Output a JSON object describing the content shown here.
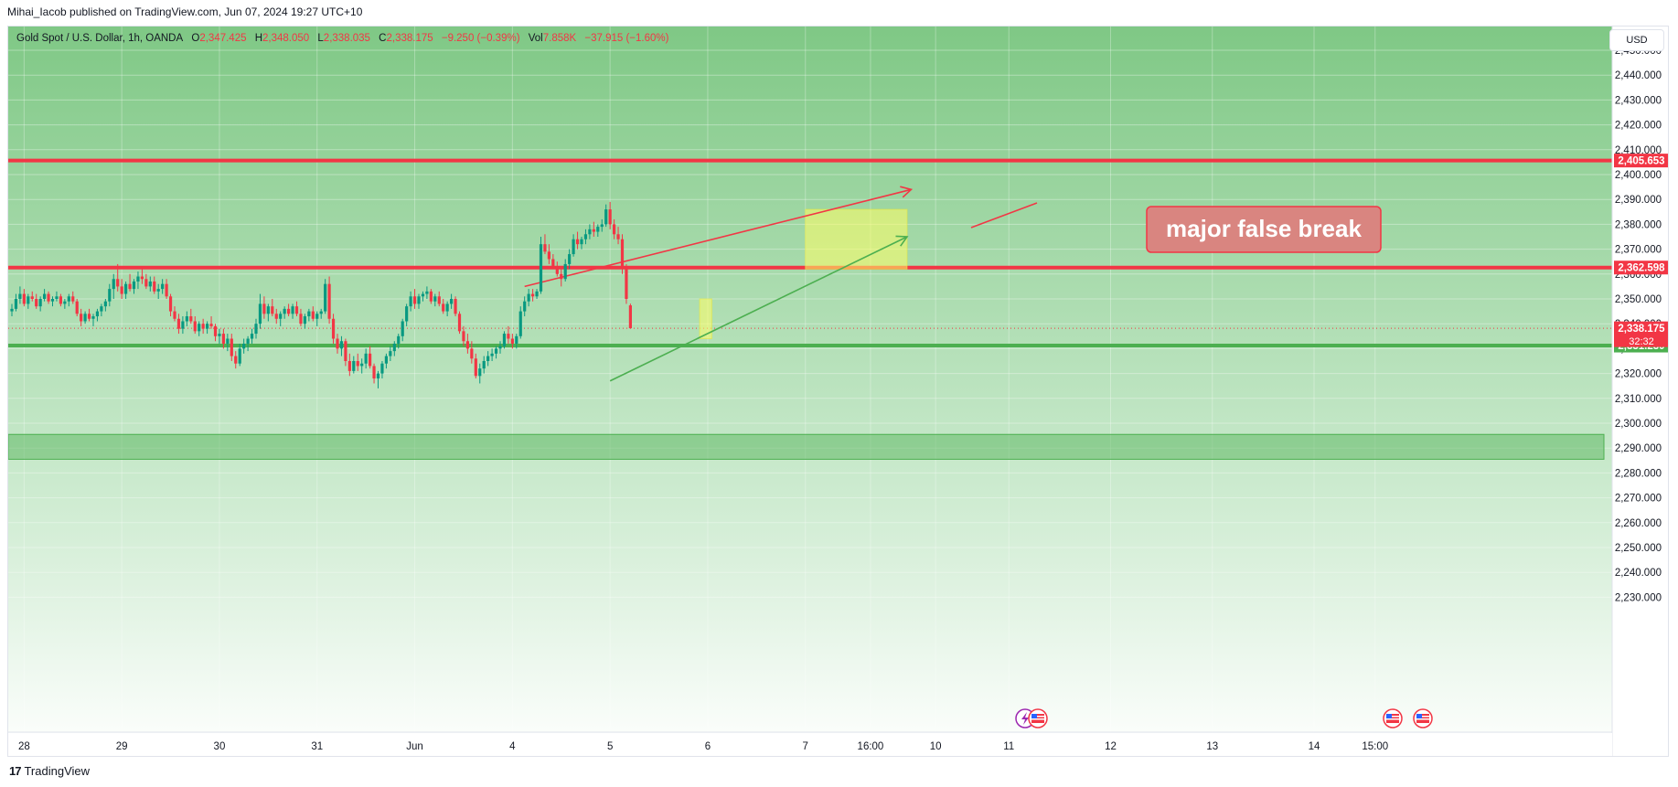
{
  "header": {
    "publish_line": "Mihai_Iacob published on TradingView.com, Jun 07, 2024 19:27 UTC+10"
  },
  "legend": {
    "symbol": "Gold Spot / U.S. Dollar, 1h, OANDA",
    "o_label": "O",
    "o_value": "2,347.425",
    "h_label": "H",
    "h_value": "2,348.050",
    "l_label": "L",
    "l_value": "2,338.035",
    "c_label": "C",
    "c_value": "2,338.175",
    "change": "−9.250 (−0.39%)",
    "vol_label": "Vol",
    "vol_value": "7.858K",
    "vol_change": "−37.915 (−1.60%)"
  },
  "currency": "USD",
  "footer": {
    "brand": "TradingView",
    "logo": "17"
  },
  "colors": {
    "up": "#089981",
    "down": "#f23645",
    "support": "#4caf50",
    "bg_top": "#7fc885",
    "bg_bottom": "#ffffff",
    "zone": "#ffff66"
  },
  "chart_data": {
    "type": "candlestick",
    "symbol": "XAUUSD",
    "interval": "1h",
    "y_axis": {
      "min": 2225,
      "max": 2455,
      "ticks": [
        2230,
        2240,
        2250,
        2260,
        2270,
        2280,
        2290,
        2300,
        2310,
        2320,
        2330,
        2340,
        2350,
        2360,
        2370,
        2380,
        2390,
        2400,
        2410,
        2420,
        2430,
        2440,
        2450
      ]
    },
    "x_ticks": [
      {
        "label": "28",
        "bar": 3
      },
      {
        "label": "29",
        "bar": 27
      },
      {
        "label": "30",
        "bar": 51
      },
      {
        "label": "31",
        "bar": 75
      },
      {
        "label": "Jun",
        "bar": 99
      },
      {
        "label": "4",
        "bar": 123
      },
      {
        "label": "5",
        "bar": 147
      },
      {
        "label": "6",
        "bar": 171
      },
      {
        "label": "7",
        "bar": 195
      },
      {
        "label": "16:00",
        "bar": 211
      },
      {
        "label": "10",
        "bar": 227
      },
      {
        "label": "11",
        "bar": 245
      },
      {
        "label": "12",
        "bar": 270
      },
      {
        "label": "13",
        "bar": 295
      },
      {
        "label": "14",
        "bar": 320
      },
      {
        "label": "15:00",
        "bar": 335
      }
    ],
    "levels": [
      {
        "name": "resistance",
        "price": 2405.653,
        "label": "2,405.653",
        "color": "#f23645"
      },
      {
        "name": "breakout",
        "price": 2362.598,
        "label": "2,362.598",
        "color": "#f23645"
      },
      {
        "name": "support",
        "price": 2331.23,
        "label": "2,331.230",
        "color": "#4caf50"
      }
    ],
    "last_price": {
      "price": 2338.175,
      "label": "2,338.175",
      "countdown": "32:32"
    },
    "zone": {
      "from": 2285.5,
      "to": 2295.5
    },
    "annotation": "major false break",
    "trendlines": [
      {
        "name": "red-channel",
        "color": "#f23645",
        "points": [
          [
            126,
            2355
          ],
          [
            221,
            2394
          ]
        ]
      },
      {
        "name": "green-channel",
        "color": "#4caf50",
        "points": [
          [
            147,
            2317
          ],
          [
            220,
            2375
          ]
        ]
      }
    ],
    "highlight_boxes": [
      {
        "name": "breakout-box",
        "bar_from": 195,
        "bar_to": 220,
        "from": 2362,
        "to": 2386
      },
      {
        "name": "small-box",
        "bar_from": 169,
        "bar_to": 172,
        "from": 2334,
        "to": 2350
      }
    ],
    "candles": [
      [
        2345.0,
        2348.0,
        2343.0,
        2346.0
      ],
      [
        2346.0,
        2352.0,
        2345.0,
        2350.0
      ],
      [
        2350.0,
        2355.0,
        2348.0,
        2352.0
      ],
      [
        2352.0,
        2354.0,
        2347.0,
        2348.0
      ],
      [
        2348.0,
        2352.0,
        2346.0,
        2351.0
      ],
      [
        2351.0,
        2353.0,
        2349.0,
        2350.0
      ],
      [
        2350.0,
        2352.0,
        2346.0,
        2347.0
      ],
      [
        2347.0,
        2351.0,
        2345.0,
        2350.0
      ],
      [
        2350.0,
        2354.0,
        2349.0,
        2352.0
      ],
      [
        2352.0,
        2353.0,
        2348.0,
        2349.0
      ],
      [
        2349.0,
        2351.0,
        2347.0,
        2350.0
      ],
      [
        2350.0,
        2353.0,
        2349.0,
        2351.0
      ],
      [
        2351.0,
        2352.0,
        2347.0,
        2348.0
      ],
      [
        2348.0,
        2350.0,
        2346.0,
        2349.0
      ],
      [
        2349.0,
        2352.0,
        2347.0,
        2351.0
      ],
      [
        2351.0,
        2353.0,
        2348.0,
        2349.0
      ],
      [
        2349.0,
        2350.0,
        2343.0,
        2344.0
      ],
      [
        2344.0,
        2346.0,
        2339.0,
        2341.0
      ],
      [
        2341.0,
        2345.0,
        2340.0,
        2344.0
      ],
      [
        2344.0,
        2346.0,
        2341.0,
        2342.0
      ],
      [
        2342.0,
        2344.0,
        2339.0,
        2343.0
      ],
      [
        2343.0,
        2346.0,
        2341.0,
        2345.0
      ],
      [
        2345.0,
        2348.0,
        2343.0,
        2347.0
      ],
      [
        2347.0,
        2350.0,
        2345.0,
        2349.0
      ],
      [
        2349.0,
        2356.0,
        2347.0,
        2354.0
      ],
      [
        2354.0,
        2360.0,
        2350.0,
        2358.0
      ],
      [
        2358.0,
        2364.0,
        2353.0,
        2355.0
      ],
      [
        2355.0,
        2358.0,
        2350.0,
        2352.0
      ],
      [
        2352.0,
        2357.0,
        2350.0,
        2356.0
      ],
      [
        2356.0,
        2360.0,
        2353.0,
        2354.0
      ],
      [
        2354.0,
        2358.0,
        2352.0,
        2357.0
      ],
      [
        2357.0,
        2361.0,
        2354.0,
        2359.0
      ],
      [
        2359.0,
        2362.0,
        2356.0,
        2358.0
      ],
      [
        2358.0,
        2360.0,
        2354.0,
        2355.0
      ],
      [
        2355.0,
        2359.0,
        2353.0,
        2357.0
      ],
      [
        2357.0,
        2359.0,
        2352.0,
        2353.0
      ],
      [
        2353.0,
        2356.0,
        2350.0,
        2354.0
      ],
      [
        2354.0,
        2358.0,
        2352.0,
        2356.0
      ],
      [
        2356.0,
        2358.0,
        2350.0,
        2351.0
      ],
      [
        2351.0,
        2352.0,
        2343.0,
        2345.0
      ],
      [
        2345.0,
        2347.0,
        2341.0,
        2342.0
      ],
      [
        2342.0,
        2344.0,
        2336.0,
        2338.0
      ],
      [
        2338.0,
        2343.0,
        2336.0,
        2341.0
      ],
      [
        2341.0,
        2345.0,
        2339.0,
        2343.0
      ],
      [
        2343.0,
        2346.0,
        2340.0,
        2341.0
      ],
      [
        2341.0,
        2343.0,
        2336.0,
        2337.0
      ],
      [
        2337.0,
        2341.0,
        2335.0,
        2340.0
      ],
      [
        2340.0,
        2342.0,
        2336.0,
        2338.0
      ],
      [
        2338.0,
        2341.0,
        2336.0,
        2340.0
      ],
      [
        2340.0,
        2343.0,
        2338.0,
        2339.0
      ],
      [
        2339.0,
        2340.0,
        2333.0,
        2335.0
      ],
      [
        2335.0,
        2338.0,
        2332.0,
        2336.0
      ],
      [
        2336.0,
        2338.0,
        2330.0,
        2332.0
      ],
      [
        2332.0,
        2336.0,
        2329.0,
        2334.0
      ],
      [
        2334.0,
        2336.0,
        2325.0,
        2327.0
      ],
      [
        2327.0,
        2329.0,
        2322.0,
        2324.0
      ],
      [
        2324.0,
        2332.0,
        2323.0,
        2330.0
      ],
      [
        2330.0,
        2334.0,
        2328.0,
        2332.0
      ],
      [
        2332.0,
        2335.0,
        2329.0,
        2334.0
      ],
      [
        2334.0,
        2338.0,
        2332.0,
        2336.0
      ],
      [
        2336.0,
        2342.0,
        2334.0,
        2340.0
      ],
      [
        2340.0,
        2352.0,
        2338.0,
        2348.0
      ],
      [
        2348.0,
        2351.0,
        2342.0,
        2344.0
      ],
      [
        2344.0,
        2348.0,
        2341.0,
        2347.0
      ],
      [
        2347.0,
        2350.0,
        2343.0,
        2344.0
      ],
      [
        2344.0,
        2346.0,
        2340.0,
        2342.0
      ],
      [
        2342.0,
        2345.0,
        2339.0,
        2344.0
      ],
      [
        2344.0,
        2347.0,
        2342.0,
        2346.0
      ],
      [
        2346.0,
        2348.0,
        2343.0,
        2344.0
      ],
      [
        2344.0,
        2348.0,
        2342.0,
        2347.0
      ],
      [
        2347.0,
        2349.0,
        2343.0,
        2344.0
      ],
      [
        2344.0,
        2346.0,
        2339.0,
        2340.0
      ],
      [
        2340.0,
        2344.0,
        2338.0,
        2343.0
      ],
      [
        2343.0,
        2346.0,
        2341.0,
        2345.0
      ],
      [
        2345.0,
        2347.0,
        2341.0,
        2342.0
      ],
      [
        2342.0,
        2345.0,
        2339.0,
        2344.0
      ],
      [
        2344.0,
        2346.0,
        2342.0,
        2345.0
      ],
      [
        2345.0,
        2358.0,
        2344.0,
        2356.0
      ],
      [
        2356.0,
        2359.0,
        2340.0,
        2342.0
      ],
      [
        2342.0,
        2344.0,
        2332.0,
        2334.0
      ],
      [
        2334.0,
        2336.0,
        2328.0,
        2330.0
      ],
      [
        2330.0,
        2335.0,
        2327.0,
        2333.0
      ],
      [
        2333.0,
        2334.0,
        2323.0,
        2325.0
      ],
      [
        2325.0,
        2328.0,
        2319.0,
        2321.0
      ],
      [
        2321.0,
        2327.0,
        2320.0,
        2325.0
      ],
      [
        2325.0,
        2328.0,
        2321.0,
        2323.0
      ],
      [
        2323.0,
        2326.0,
        2320.0,
        2324.0
      ],
      [
        2324.0,
        2330.0,
        2322.0,
        2328.0
      ],
      [
        2328.0,
        2331.0,
        2322.0,
        2323.0
      ],
      [
        2323.0,
        2324.0,
        2316.0,
        2318.0
      ],
      [
        2318.0,
        2321.0,
        2314.0,
        2320.0
      ],
      [
        2320.0,
        2325.0,
        2318.0,
        2324.0
      ],
      [
        2324.0,
        2328.0,
        2322.0,
        2327.0
      ],
      [
        2327.0,
        2331.0,
        2325.0,
        2329.0
      ],
      [
        2329.0,
        2333.0,
        2327.0,
        2332.0
      ],
      [
        2332.0,
        2336.0,
        2330.0,
        2335.0
      ],
      [
        2335.0,
        2342.0,
        2333.0,
        2341.0
      ],
      [
        2341.0,
        2348.0,
        2339.0,
        2347.0
      ],
      [
        2347.0,
        2353.0,
        2345.0,
        2351.0
      ],
      [
        2351.0,
        2354.0,
        2346.0,
        2348.0
      ],
      [
        2348.0,
        2352.0,
        2346.0,
        2351.0
      ],
      [
        2351.0,
        2353.0,
        2349.0,
        2352.0
      ],
      [
        2352.0,
        2355.0,
        2350.0,
        2353.0
      ],
      [
        2353.0,
        2354.0,
        2348.0,
        2349.0
      ],
      [
        2349.0,
        2352.0,
        2347.0,
        2351.0
      ],
      [
        2351.0,
        2353.0,
        2347.0,
        2348.0
      ],
      [
        2348.0,
        2350.0,
        2344.0,
        2345.0
      ],
      [
        2345.0,
        2349.0,
        2343.0,
        2348.0
      ],
      [
        2348.0,
        2352.0,
        2346.0,
        2350.0
      ],
      [
        2350.0,
        2351.0,
        2343.0,
        2344.0
      ],
      [
        2344.0,
        2345.0,
        2336.0,
        2337.0
      ],
      [
        2337.0,
        2339.0,
        2331.0,
        2333.0
      ],
      [
        2333.0,
        2336.0,
        2328.0,
        2330.0
      ],
      [
        2330.0,
        2333.0,
        2324.0,
        2326.0
      ],
      [
        2326.0,
        2328.0,
        2318.0,
        2319.0
      ],
      [
        2319.0,
        2324.0,
        2316.0,
        2322.0
      ],
      [
        2322.0,
        2327.0,
        2320.0,
        2325.0
      ],
      [
        2325.0,
        2329.0,
        2323.0,
        2327.0
      ],
      [
        2327.0,
        2330.0,
        2325.0,
        2328.0
      ],
      [
        2328.0,
        2331.0,
        2326.0,
        2330.0
      ],
      [
        2330.0,
        2333.0,
        2328.0,
        2331.0
      ],
      [
        2331.0,
        2337.0,
        2330.0,
        2336.0
      ],
      [
        2336.0,
        2339.0,
        2332.0,
        2334.0
      ],
      [
        2334.0,
        2336.0,
        2330.0,
        2332.0
      ],
      [
        2332.0,
        2336.0,
        2330.0,
        2335.0
      ],
      [
        2335.0,
        2347.0,
        2334.0,
        2345.0
      ],
      [
        2345.0,
        2351.0,
        2343.0,
        2349.0
      ],
      [
        2349.0,
        2354.0,
        2347.0,
        2352.0
      ],
      [
        2352.0,
        2354.0,
        2349.0,
        2351.0
      ],
      [
        2351.0,
        2354.0,
        2350.0,
        2353.0
      ],
      [
        2353.0,
        2375.0,
        2352.0,
        2372.0
      ],
      [
        2372.0,
        2376.0,
        2368.0,
        2369.0
      ],
      [
        2369.0,
        2372.0,
        2364.0,
        2366.0
      ],
      [
        2366.0,
        2368.0,
        2362.0,
        2363.0
      ],
      [
        2363.0,
        2365.0,
        2359.0,
        2360.0
      ],
      [
        2360.0,
        2362.0,
        2355.0,
        2358.0
      ],
      [
        2358.0,
        2366.0,
        2357.0,
        2364.0
      ],
      [
        2364.0,
        2370.0,
        2362.0,
        2368.0
      ],
      [
        2368.0,
        2376.0,
        2367.0,
        2374.0
      ],
      [
        2374.0,
        2377.0,
        2370.0,
        2372.0
      ],
      [
        2372.0,
        2375.0,
        2370.0,
        2374.0
      ],
      [
        2374.0,
        2378.0,
        2372.0,
        2376.0
      ],
      [
        2376.0,
        2380.0,
        2374.0,
        2378.0
      ],
      [
        2378.0,
        2381.0,
        2375.0,
        2377.0
      ],
      [
        2377.0,
        2380.0,
        2375.0,
        2379.0
      ],
      [
        2379.0,
        2382.0,
        2377.0,
        2380.0
      ],
      [
        2380.0,
        2388.0,
        2379.0,
        2386.0
      ],
      [
        2386.0,
        2389.0,
        2378.0,
        2380.0
      ],
      [
        2380.0,
        2382.0,
        2374.0,
        2376.0
      ],
      [
        2376.0,
        2379.0,
        2372.0,
        2374.0
      ],
      [
        2374.0,
        2376.0,
        2360.0,
        2362.0
      ],
      [
        2362.0,
        2364.0,
        2348.0,
        2350.0
      ],
      [
        2347.4,
        2348.1,
        2338.0,
        2338.2
      ]
    ]
  }
}
